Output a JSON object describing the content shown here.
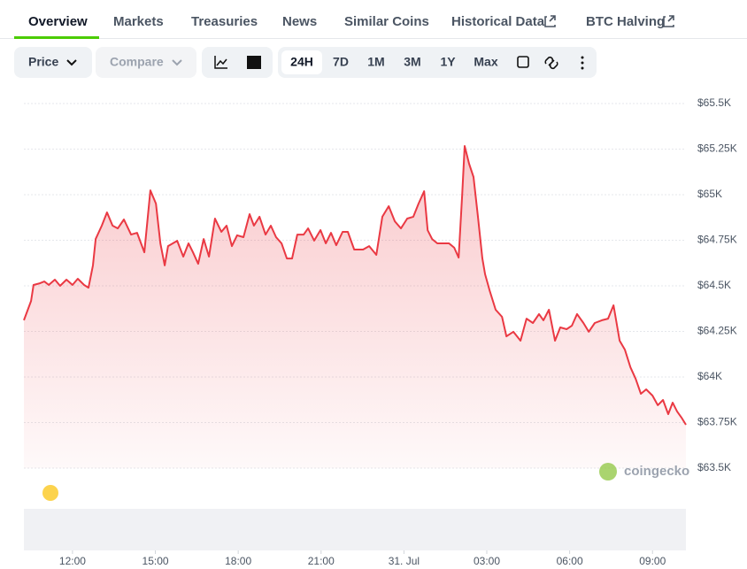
{
  "tabs": [
    "Overview",
    "Markets",
    "Treasuries",
    "News",
    "Similar Coins",
    "Historical Data",
    "BTC Halving"
  ],
  "toolbar": {
    "price": "Price",
    "compare": "Compare",
    "ranges": [
      "24H",
      "7D",
      "1M",
      "3M",
      "1Y",
      "Max"
    ]
  },
  "watermark": "coingecko",
  "chart_data": {
    "type": "line",
    "color": "#ea3943",
    "grid": true,
    "x": [
      10.24,
      10.5,
      10.59,
      10.82,
      10.98,
      11.14,
      11.36,
      11.55,
      11.78,
      12.0,
      12.19,
      12.42,
      12.58,
      12.74,
      12.84,
      13.06,
      13.25,
      13.45,
      13.64,
      13.86,
      14.12,
      14.34,
      14.6,
      14.82,
      15.02,
      15.18,
      15.34,
      15.46,
      15.79,
      16.01,
      16.2,
      16.36,
      16.55,
      16.75,
      16.94,
      17.16,
      17.39,
      17.58,
      17.77,
      17.96,
      18.19,
      18.41,
      18.57,
      18.77,
      18.99,
      19.18,
      19.37,
      19.57,
      19.76,
      19.95,
      20.14,
      20.37,
      20.53,
      20.75,
      20.98,
      21.17,
      21.36,
      21.55,
      21.78,
      21.97,
      22.2,
      22.52,
      22.74,
      23.0,
      23.22,
      23.45,
      23.67,
      23.89,
      24.12,
      24.34,
      24.53,
      24.73,
      24.86,
      25.02,
      25.21,
      25.4,
      25.63,
      25.82,
      25.98,
      26.11,
      26.2,
      26.36,
      26.52,
      26.68,
      26.84,
      26.94,
      27.1,
      27.32,
      27.55,
      27.71,
      27.96,
      28.22,
      28.44,
      28.67,
      28.89,
      29.05,
      29.25,
      29.47,
      29.66,
      29.89,
      30.08,
      30.27,
      30.5,
      30.69,
      30.91,
      31.17,
      31.39,
      31.59,
      31.81,
      32.0,
      32.2,
      32.39,
      32.58,
      32.77,
      33.0,
      33.19,
      33.38,
      33.57,
      33.73,
      33.89,
      34.05,
      34.21
    ],
    "values": [
      64311,
      64417,
      64505,
      64514,
      64524,
      64505,
      64534,
      64500,
      64534,
      64505,
      64539,
      64505,
      64490,
      64612,
      64757,
      64830,
      64903,
      64830,
      64815,
      64864,
      64781,
      64791,
      64684,
      65024,
      64951,
      64733,
      64612,
      64718,
      64747,
      64660,
      64733,
      64684,
      64621,
      64757,
      64660,
      64869,
      64796,
      64830,
      64718,
      64777,
      64767,
      64893,
      64830,
      64879,
      64781,
      64830,
      64767,
      64733,
      64650,
      64650,
      64781,
      64781,
      64815,
      64748,
      64806,
      64733,
      64791,
      64723,
      64796,
      64796,
      64699,
      64699,
      64718,
      64670,
      64879,
      64937,
      64854,
      64815,
      64869,
      64879,
      64951,
      65019,
      64805,
      64757,
      64733,
      64733,
      64733,
      64709,
      64655,
      65000,
      65267,
      65170,
      65097,
      64879,
      64650,
      64563,
      64476,
      64369,
      64330,
      64223,
      64248,
      64199,
      64320,
      64296,
      64345,
      64311,
      64369,
      64199,
      64272,
      64262,
      64281,
      64345,
      64296,
      64248,
      64296,
      64311,
      64320,
      64393,
      64199,
      64150,
      64053,
      63990,
      63908,
      63932,
      63898,
      63845,
      63874,
      63796,
      63859,
      63811,
      63777,
      63738
    ],
    "xlim": [
      10.24,
      34.21
    ],
    "xticks": [
      {
        "value": 12,
        "label": "12:00"
      },
      {
        "value": 15,
        "label": "15:00"
      },
      {
        "value": 18,
        "label": "18:00"
      },
      {
        "value": 21,
        "label": "21:00"
      },
      {
        "value": 24,
        "label": "31. Jul"
      },
      {
        "value": 27,
        "label": "03:00"
      },
      {
        "value": 30,
        "label": "06:00"
      },
      {
        "value": 33,
        "label": "09:00"
      }
    ],
    "ylim": [
      63500,
      65500
    ],
    "yticks": [
      {
        "value": 63500,
        "label": "$63.5K"
      },
      {
        "value": 63750,
        "label": "$63.75K"
      },
      {
        "value": 64000,
        "label": "$64K"
      },
      {
        "value": 64250,
        "label": "$64.25K"
      },
      {
        "value": 64500,
        "label": "$64.5K"
      },
      {
        "value": 64750,
        "label": "$64.75K"
      },
      {
        "value": 65000,
        "label": "$65K"
      },
      {
        "value": 65250,
        "label": "$65.25K"
      },
      {
        "value": 65500,
        "label": "$65.5K"
      }
    ]
  }
}
